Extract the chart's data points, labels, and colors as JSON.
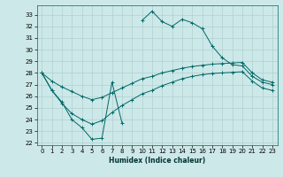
{
  "title": "",
  "xlabel": "Humidex (Indice chaleur)",
  "bg_color": "#cde8e8",
  "grid_color": "#b0d0d0",
  "line_color": "#006868",
  "xlim": [
    -0.5,
    23.5
  ],
  "ylim": [
    21.8,
    33.8
  ],
  "yticks": [
    22,
    23,
    24,
    25,
    26,
    27,
    28,
    29,
    30,
    31,
    32,
    33
  ],
  "xticks": [
    0,
    1,
    2,
    3,
    4,
    5,
    6,
    7,
    8,
    9,
    10,
    11,
    12,
    13,
    14,
    15,
    16,
    17,
    18,
    19,
    20,
    21,
    22,
    23
  ],
  "series1_x": [
    0,
    1,
    2,
    3,
    4,
    5,
    6,
    7,
    8,
    9,
    10,
    11,
    12,
    13,
    14,
    15,
    16,
    17,
    18,
    19,
    20,
    21,
    22,
    23
  ],
  "series1_y": [
    28.0,
    26.5,
    25.5,
    24.0,
    23.3,
    22.3,
    22.4,
    27.2,
    23.7,
    null,
    32.5,
    33.3,
    32.4,
    32.0,
    32.6,
    32.3,
    31.8,
    30.3,
    29.3,
    28.7,
    28.6,
    27.7,
    27.2,
    27.0
  ],
  "series2_x": [
    0,
    1,
    2,
    3,
    4,
    5,
    6,
    7,
    8,
    9,
    10,
    11,
    12,
    13,
    14,
    15,
    16,
    17,
    18,
    19,
    20,
    21,
    22,
    23
  ],
  "series2_y": [
    28.0,
    27.3,
    26.8,
    26.4,
    26.0,
    25.7,
    25.9,
    26.3,
    26.7,
    27.1,
    27.5,
    27.7,
    28.0,
    28.2,
    28.4,
    28.55,
    28.65,
    28.75,
    28.8,
    28.85,
    28.9,
    28.0,
    27.4,
    27.2
  ],
  "series3_x": [
    0,
    1,
    2,
    3,
    4,
    5,
    6,
    7,
    8,
    9,
    10,
    11,
    12,
    13,
    14,
    15,
    16,
    17,
    18,
    19,
    20,
    21,
    22,
    23
  ],
  "series3_y": [
    28.0,
    26.5,
    25.4,
    24.5,
    24.0,
    23.6,
    23.9,
    24.6,
    25.2,
    25.7,
    26.2,
    26.5,
    26.9,
    27.2,
    27.5,
    27.7,
    27.85,
    27.95,
    28.0,
    28.05,
    28.1,
    27.3,
    26.7,
    26.5
  ]
}
